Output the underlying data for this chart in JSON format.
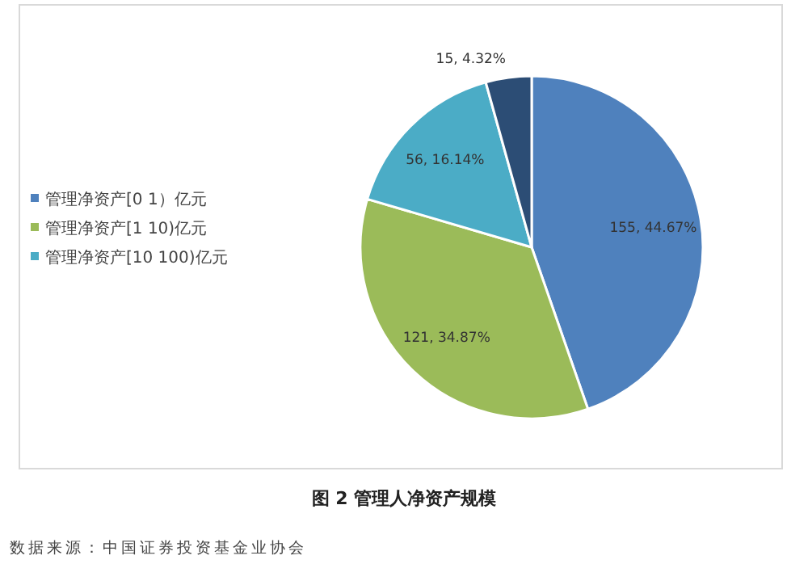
{
  "chart_data": {
    "type": "pie",
    "title": "图 2 管理人净资产规模",
    "categories": [
      "管理净资产[0 1）亿元",
      "管理净资产[1 10)亿元",
      "管理净资产[10 100)亿元",
      null
    ],
    "values": [
      155,
      121,
      56,
      15
    ],
    "colors": [
      "#4f81bd",
      "#9bbb59",
      "#4bacc6",
      "#2c4d75"
    ],
    "value_labels": [
      "155, 44.67%",
      "121, 34.87%",
      "56, 16.14%",
      "15, 4.32%"
    ],
    "legend": "left",
    "annotations": [
      "数据来源：中国证券投资基金业协会"
    ]
  }
}
